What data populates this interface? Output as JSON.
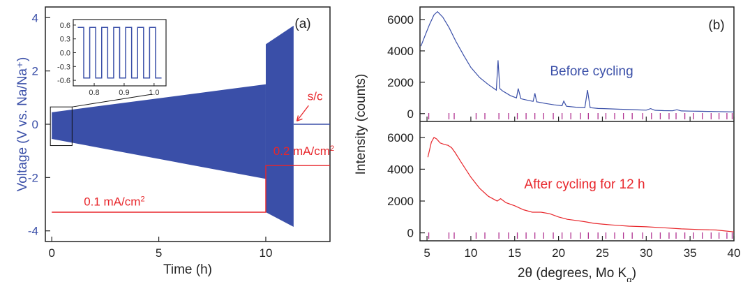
{
  "chart_data": [
    {
      "panel": "(a)",
      "type": "line",
      "xlabel": "Time (h)",
      "ylabel": "Voltage (V vs. Na/Na⁺)",
      "xlim": [
        -0.3,
        13
      ],
      "ylim": [
        -4.4,
        4.4
      ],
      "xticks": [
        0,
        5,
        10
      ],
      "yticks": [
        -4,
        -2,
        0,
        2,
        4
      ],
      "colors": {
        "voltage": "#3a4fa8",
        "current": "#e8262b",
        "frame": "#222222"
      },
      "voltage_envelope": {
        "description_values": [
          {
            "t": 0.0,
            "upper": 0.45,
            "lower": -0.55
          },
          {
            "t": 10.0,
            "upper": 1.5,
            "lower": -2.05
          },
          {
            "t": 10.0,
            "upper": 3.0,
            "lower": -3.3
          },
          {
            "t": 11.3,
            "upper": 3.7,
            "lower": -3.85
          }
        ],
        "after_short": {
          "t_start": 11.3,
          "t_end": 13.0,
          "value": 0.0
        }
      },
      "current_profile": [
        {
          "t": 0.0,
          "level": -3.3
        },
        {
          "t": 10.0,
          "level": -3.3
        },
        {
          "t": 10.0,
          "level": -1.55
        },
        {
          "t": 13.0,
          "level": -1.55
        }
      ],
      "annotations": [
        {
          "text": "0.1 mA/cm",
          "sup": "2",
          "x": 1.5,
          "y": -3.05
        },
        {
          "text": "0.2 mA/cm",
          "sup": "2",
          "x": 10.35,
          "y": -1.15
        },
        {
          "text": "s/c",
          "x": 11.95,
          "y": 0.9
        }
      ],
      "inset": {
        "xlim": [
          0.73,
          1.04
        ],
        "ylim": [
          -0.72,
          0.72
        ],
        "xticks": [
          0.8,
          0.9,
          1.0
        ],
        "xtick_labels": [
          "0.8",
          "0.9",
          "1.0"
        ],
        "yticks": [
          0.6,
          0.3,
          0.0,
          -0.3,
          -0.6
        ],
        "ytick_labels": [
          "0.6",
          "0.3",
          "0.0",
          "-0.3",
          "-0.6"
        ],
        "square_wave": {
          "high": 0.55,
          "low": -0.55,
          "period": 0.04,
          "t_start": 0.745,
          "t_end": 1.025
        },
        "zoom_box": {
          "t0": 0.0,
          "t1": 0.95,
          "v0": -0.8,
          "v1": 0.65
        }
      }
    },
    {
      "panel": "(b)",
      "type": "line",
      "xlabel_main": "2θ (degrees, Mo K",
      "xlabel_sub": "α",
      "xlabel_end": ")",
      "ylabel": "Intensity (counts)",
      "xlim": [
        4.2,
        40
      ],
      "xticks": [
        5,
        10,
        15,
        20,
        25,
        30,
        35,
        40
      ],
      "series": [
        {
          "name": "Before cycling",
          "color": "#3a4fa8",
          "ylim": [
            -500,
            6800
          ],
          "yticks": [
            0,
            2000,
            4000,
            6000
          ],
          "x": [
            4.3,
            4.8,
            5.3,
            5.8,
            6.2,
            6.8,
            7.5,
            8.3,
            9.2,
            10.0,
            11.0,
            12.0,
            12.9,
            13.1,
            13.3,
            13.6,
            14.5,
            15.2,
            15.4,
            15.7,
            16.5,
            17.1,
            17.3,
            17.5,
            18.5,
            19.5,
            20.4,
            20.6,
            20.9,
            22.0,
            23.0,
            23.3,
            23.6,
            24.5,
            25.2,
            26.0,
            27.0,
            28.0,
            29.0,
            30.0,
            30.5,
            31.0,
            32.0,
            33.0,
            33.5,
            34.0,
            35.0,
            36.0,
            37.0,
            38.0,
            39.0,
            40.0
          ],
          "y": [
            4300,
            5000,
            5700,
            6300,
            6500,
            6150,
            5500,
            4600,
            3700,
            2950,
            2300,
            1850,
            1500,
            3400,
            1600,
            1450,
            1150,
            1000,
            1600,
            950,
            850,
            780,
            1300,
            750,
            650,
            560,
            500,
            800,
            470,
            410,
            380,
            1500,
            380,
            330,
            320,
            300,
            280,
            260,
            240,
            220,
            320,
            210,
            190,
            180,
            250,
            170,
            160,
            150,
            140,
            130,
            120,
            110
          ]
        },
        {
          "name": "After cycling for 12 h",
          "color": "#e8262b",
          "ylim": [
            -500,
            7000
          ],
          "yticks": [
            0,
            2000,
            4000,
            6000
          ],
          "x": [
            5.1,
            5.5,
            5.8,
            6.1,
            6.5,
            7.0,
            7.4,
            7.8,
            8.2,
            9.0,
            10.0,
            11.0,
            12.0,
            13.0,
            13.4,
            14.0,
            15.0,
            16.0,
            17.0,
            18.0,
            19.0,
            20.0,
            21.0,
            22.0,
            23.0,
            24.0,
            25.0,
            26.0,
            28.0,
            30.0,
            32.0,
            34.0,
            36.0,
            38.0,
            39.0,
            40.0
          ],
          "y": [
            4750,
            5700,
            6000,
            5900,
            5650,
            5550,
            5500,
            5350,
            5050,
            4350,
            3500,
            2800,
            2300,
            2000,
            2150,
            1900,
            1700,
            1450,
            1300,
            1300,
            1200,
            1000,
            850,
            780,
            700,
            600,
            550,
            500,
            420,
            380,
            320,
            250,
            210,
            180,
            120,
            60
          ]
        }
      ],
      "reference_ticks_color": "#b03090",
      "reference_ticks": [
        5.2,
        7.5,
        8.1,
        10.6,
        11.6,
        13.2,
        14.3,
        15.3,
        16.3,
        17.3,
        18.3,
        19.4,
        20.4,
        21.4,
        22.5,
        23.4,
        24.5,
        25.4,
        26.4,
        27.4,
        28.4,
        29.6,
        30.6,
        31.6,
        32.6,
        33.4,
        34.4,
        35.4,
        36.4,
        37.4,
        38.3,
        39.2,
        39.8
      ],
      "panel_label": "(b)"
    }
  ]
}
